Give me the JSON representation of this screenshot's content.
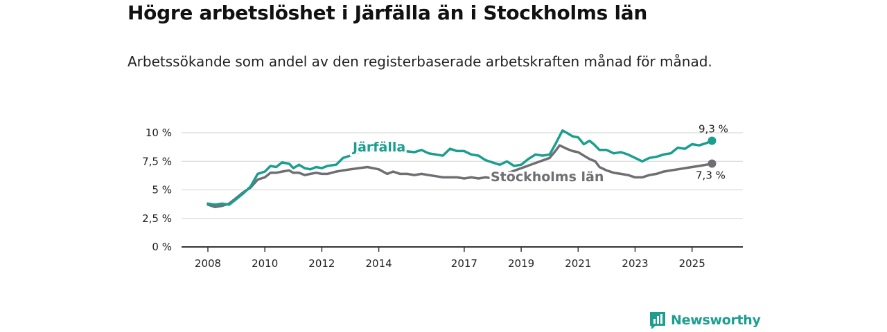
{
  "title": "Högre arbetslöshet i Järfälla än i Stockholms län",
  "subtitle": "Arbetssökande som andel av den registerbaserade arbetskraften månad för månad.",
  "brand": "Newsworthy",
  "colors": {
    "jarfalla": "#1a9e8f",
    "stockholm": "#6e6e73",
    "grid": "#dcdcdc",
    "axis": "#333333"
  },
  "chart_data": {
    "type": "line",
    "y_ticks": [
      {
        "value": 0,
        "label": "0 %"
      },
      {
        "value": 2.5,
        "label": "2,5 %"
      },
      {
        "value": 5,
        "label": "5 %"
      },
      {
        "value": 7.5,
        "label": "7,5 %"
      },
      {
        "value": 10,
        "label": "10 %"
      }
    ],
    "x_ticks": [
      "2008",
      "2010",
      "2012",
      "2014",
      "2017",
      "2019",
      "2021",
      "2023",
      "2025"
    ],
    "x_range": [
      2008,
      2025.83
    ],
    "ylim": [
      0,
      10
    ],
    "grid": true,
    "series": [
      {
        "name": "Järfälla",
        "color": "#1a9e8f",
        "end_label": "9,3 %",
        "points": [
          [
            2008.0,
            3.8
          ],
          [
            2008.25,
            3.7
          ],
          [
            2008.5,
            3.8
          ],
          [
            2008.75,
            3.7
          ],
          [
            2009.0,
            4.2
          ],
          [
            2009.25,
            4.7
          ],
          [
            2009.5,
            5.3
          ],
          [
            2009.75,
            6.4
          ],
          [
            2010.0,
            6.6
          ],
          [
            2010.2,
            7.1
          ],
          [
            2010.4,
            7.0
          ],
          [
            2010.6,
            7.4
          ],
          [
            2010.85,
            7.3
          ],
          [
            2011.0,
            6.9
          ],
          [
            2011.2,
            7.2
          ],
          [
            2011.4,
            6.9
          ],
          [
            2011.6,
            6.8
          ],
          [
            2011.8,
            7.0
          ],
          [
            2012.0,
            6.9
          ],
          [
            2012.2,
            7.1
          ],
          [
            2012.5,
            7.2
          ],
          [
            2012.75,
            7.8
          ],
          [
            2013.0,
            8.0
          ],
          [
            2013.3,
            8.3
          ],
          [
            2013.6,
            8.6
          ],
          [
            2014.0,
            8.5
          ],
          [
            2014.5,
            8.6
          ],
          [
            2014.9,
            8.4
          ],
          [
            2015.25,
            8.3
          ],
          [
            2015.5,
            8.5
          ],
          [
            2015.75,
            8.2
          ],
          [
            2016.0,
            8.1
          ],
          [
            2016.25,
            8.0
          ],
          [
            2016.5,
            8.6
          ],
          [
            2016.75,
            8.4
          ],
          [
            2017.0,
            8.4
          ],
          [
            2017.25,
            8.1
          ],
          [
            2017.5,
            8.0
          ],
          [
            2017.75,
            7.6
          ],
          [
            2018.0,
            7.4
          ],
          [
            2018.25,
            7.2
          ],
          [
            2018.5,
            7.5
          ],
          [
            2018.75,
            7.1
          ],
          [
            2019.0,
            7.2
          ],
          [
            2019.25,
            7.7
          ],
          [
            2019.5,
            8.1
          ],
          [
            2019.75,
            8.0
          ],
          [
            2020.0,
            8.1
          ],
          [
            2020.2,
            9.0
          ],
          [
            2020.45,
            10.2
          ],
          [
            2020.6,
            10.0
          ],
          [
            2020.8,
            9.7
          ],
          [
            2021.0,
            9.6
          ],
          [
            2021.2,
            9.0
          ],
          [
            2021.4,
            9.3
          ],
          [
            2021.55,
            9.0
          ],
          [
            2021.75,
            8.5
          ],
          [
            2022.0,
            8.5
          ],
          [
            2022.25,
            8.2
          ],
          [
            2022.5,
            8.3
          ],
          [
            2022.75,
            8.1
          ],
          [
            2023.0,
            7.8
          ],
          [
            2023.25,
            7.5
          ],
          [
            2023.5,
            7.8
          ],
          [
            2023.75,
            7.9
          ],
          [
            2024.0,
            8.1
          ],
          [
            2024.25,
            8.2
          ],
          [
            2024.5,
            8.7
          ],
          [
            2024.75,
            8.6
          ],
          [
            2025.0,
            9.0
          ],
          [
            2025.25,
            8.9
          ],
          [
            2025.5,
            9.1
          ],
          [
            2025.7,
            9.3
          ]
        ]
      },
      {
        "name": "Stockholms län",
        "color": "#6e6e73",
        "end_label": "7,3 %",
        "points": [
          [
            2008.0,
            3.7
          ],
          [
            2008.25,
            3.5
          ],
          [
            2008.5,
            3.6
          ],
          [
            2008.75,
            3.8
          ],
          [
            2009.0,
            4.3
          ],
          [
            2009.25,
            4.8
          ],
          [
            2009.5,
            5.2
          ],
          [
            2009.75,
            5.9
          ],
          [
            2010.0,
            6.1
          ],
          [
            2010.2,
            6.5
          ],
          [
            2010.4,
            6.5
          ],
          [
            2010.6,
            6.6
          ],
          [
            2010.85,
            6.7
          ],
          [
            2011.0,
            6.5
          ],
          [
            2011.2,
            6.5
          ],
          [
            2011.4,
            6.3
          ],
          [
            2011.6,
            6.4
          ],
          [
            2011.8,
            6.5
          ],
          [
            2012.0,
            6.4
          ],
          [
            2012.2,
            6.4
          ],
          [
            2012.5,
            6.6
          ],
          [
            2012.75,
            6.7
          ],
          [
            2013.0,
            6.8
          ],
          [
            2013.3,
            6.9
          ],
          [
            2013.6,
            7.0
          ],
          [
            2014.0,
            6.8
          ],
          [
            2014.3,
            6.4
          ],
          [
            2014.5,
            6.6
          ],
          [
            2014.75,
            6.4
          ],
          [
            2015.0,
            6.4
          ],
          [
            2015.25,
            6.3
          ],
          [
            2015.5,
            6.4
          ],
          [
            2015.75,
            6.3
          ],
          [
            2016.0,
            6.2
          ],
          [
            2016.25,
            6.1
          ],
          [
            2016.5,
            6.1
          ],
          [
            2016.75,
            6.1
          ],
          [
            2017.0,
            6.0
          ],
          [
            2017.25,
            6.1
          ],
          [
            2017.5,
            6.0
          ],
          [
            2017.75,
            6.1
          ],
          [
            2018.0,
            6.0
          ],
          [
            2020.0,
            7.8
          ],
          [
            2020.2,
            8.4
          ],
          [
            2020.35,
            8.9
          ],
          [
            2020.6,
            8.6
          ],
          [
            2020.8,
            8.4
          ],
          [
            2021.0,
            8.3
          ],
          [
            2021.2,
            8.0
          ],
          [
            2021.4,
            7.7
          ],
          [
            2021.6,
            7.5
          ],
          [
            2021.75,
            7.0
          ],
          [
            2022.0,
            6.7
          ],
          [
            2022.25,
            6.5
          ],
          [
            2022.5,
            6.4
          ],
          [
            2022.75,
            6.3
          ],
          [
            2023.0,
            6.1
          ],
          [
            2023.25,
            6.1
          ],
          [
            2023.5,
            6.3
          ],
          [
            2023.75,
            6.4
          ],
          [
            2024.0,
            6.6
          ],
          [
            2024.25,
            6.7
          ],
          [
            2024.5,
            6.8
          ],
          [
            2024.75,
            6.9
          ],
          [
            2025.0,
            7.0
          ],
          [
            2025.25,
            7.1
          ],
          [
            2025.5,
            7.2
          ],
          [
            2025.7,
            7.3
          ]
        ]
      }
    ],
    "annotations": [
      {
        "series": "Järfälla",
        "text": "Järfälla"
      },
      {
        "series": "Stockholms län",
        "text": "Stockholms län"
      }
    ]
  }
}
